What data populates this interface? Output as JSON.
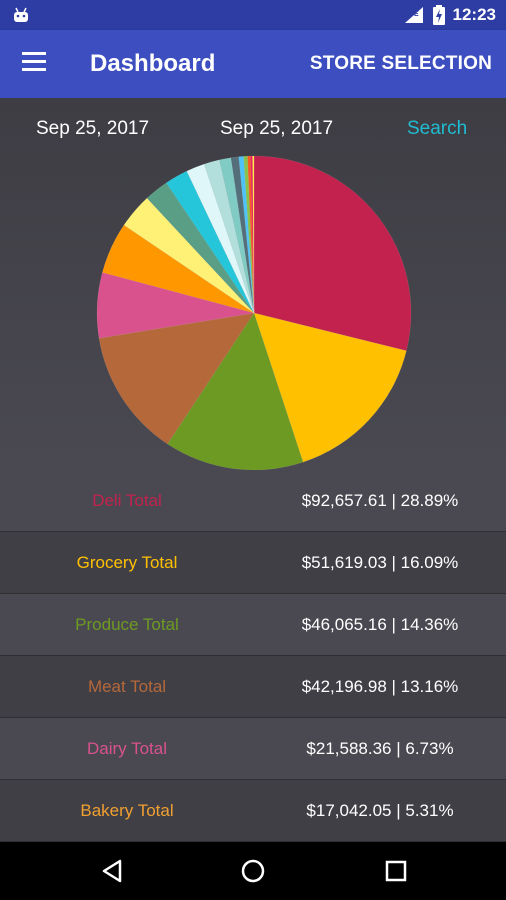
{
  "status_bar": {
    "time": "12:23",
    "icons": [
      "android-icon",
      "lte-signal-icon",
      "battery-charging-icon"
    ]
  },
  "app_bar": {
    "title": "Dashboard",
    "action_label": "STORE SELECTION",
    "menu_icon": "hamburger-menu-icon"
  },
  "filters": {
    "date_from": "Sep 25, 2017",
    "date_to": "Sep 25, 2017",
    "search_label": "Search"
  },
  "chart_data": {
    "type": "pie",
    "slices": [
      {
        "label": "Deli Total",
        "value": 28.89,
        "color": "#c2224d"
      },
      {
        "label": "Grocery Total",
        "value": 16.09,
        "color": "#ffc000"
      },
      {
        "label": "Produce Total",
        "value": 14.36,
        "color": "#6d9a22"
      },
      {
        "label": "Meat Total",
        "value": 13.16,
        "color": "#b5683a"
      },
      {
        "label": "Dairy Total",
        "value": 6.73,
        "color": "#d9528e"
      },
      {
        "label": "Bakery Total",
        "value": 5.31,
        "color": "#ff9800"
      },
      {
        "label": "",
        "value": 3.6,
        "color": "#fff176"
      },
      {
        "label": "",
        "value": 2.5,
        "color": "#5b9e86"
      },
      {
        "label": "",
        "value": 2.4,
        "color": "#26c6da"
      },
      {
        "label": "",
        "value": 1.9,
        "color": "#e0f7fa"
      },
      {
        "label": "",
        "value": 1.6,
        "color": "#b2dfdb"
      },
      {
        "label": "",
        "value": 1.2,
        "color": "#80cbc4"
      },
      {
        "label": "",
        "value": 0.8,
        "color": "#546e7a"
      },
      {
        "label": "",
        "value": 0.5,
        "color": "#4fc3f7"
      },
      {
        "label": "",
        "value": 0.4,
        "color": "#8bc34a"
      },
      {
        "label": "",
        "value": 0.3,
        "color": "#ff5722"
      },
      {
        "label": "",
        "value": 0.2,
        "color": "#e91e63"
      },
      {
        "label": "",
        "value": 0.15,
        "color": "#ffeb3b"
      }
    ]
  },
  "rows": [
    {
      "label": "Deli Total",
      "value": "$92,657.61 | 28.89%",
      "color": "#c2224d"
    },
    {
      "label": "Grocery Total",
      "value": "$51,619.03 | 16.09%",
      "color": "#ffc000"
    },
    {
      "label": "Produce Total",
      "value": "$46,065.16 | 14.36%",
      "color": "#6d9a22"
    },
    {
      "label": "Meat Total",
      "value": "$42,196.98 | 13.16%",
      "color": "#b5683a"
    },
    {
      "label": "Dairy Total",
      "value": "$21,588.36 | 6.73%",
      "color": "#d9528e"
    },
    {
      "label": "Bakery Total",
      "value": "$17,042.05 | 5.31%",
      "color": "#f0a030"
    }
  ],
  "nav_bar": {
    "back_icon": "back-triangle-icon",
    "home_icon": "home-circle-icon",
    "recents_icon": "recents-square-icon"
  }
}
